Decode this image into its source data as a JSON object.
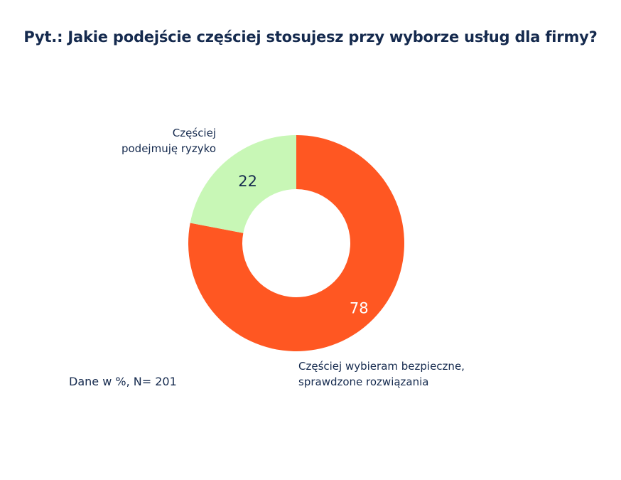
{
  "chart_data": {
    "type": "pie",
    "donut": true,
    "title": "Pyt.: Jakie podejście częściej stosujesz przy wyborze usług dla firmy?",
    "slices": [
      {
        "label_line1": "Częściej wybieram bezpieczne,",
        "label_line2": "sprawdzone rozwiązania",
        "value": 78,
        "color": "#ff5722",
        "value_color": "#ffffff"
      },
      {
        "label_line1": "Częściej",
        "label_line2": "podejmuję ryzyko",
        "value": 22,
        "color": "#c8f7b6",
        "value_color": "#152a4e"
      }
    ],
    "note": "Dane w %, N= 201"
  }
}
